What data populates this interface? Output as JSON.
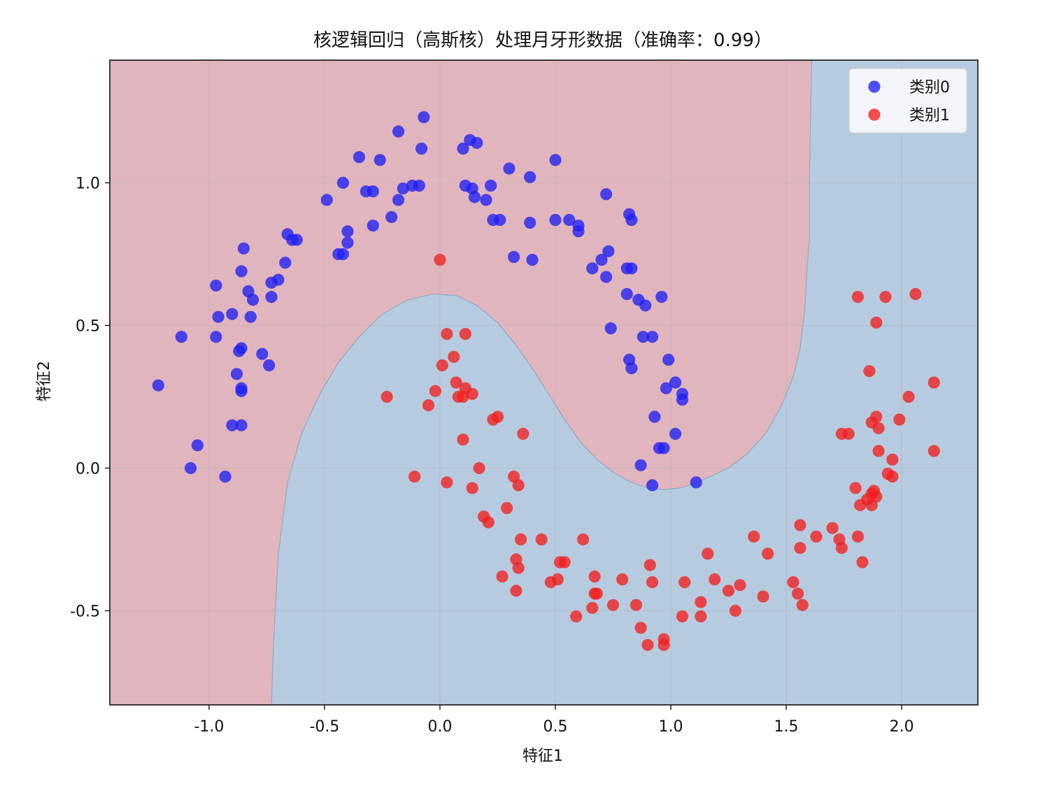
{
  "chart_data": {
    "type": "scatter",
    "title": "核逻辑回归（高斯核）处理月牙形数据（准确率：0.99）",
    "xlabel": "特征1",
    "ylabel": "特征2",
    "xlim": [
      -1.43,
      2.33
    ],
    "ylim": [
      -0.83,
      1.43
    ],
    "xticks": [
      -1.0,
      -0.5,
      0.0,
      0.5,
      1.0,
      1.5,
      2.0
    ],
    "xtick_labels": [
      "-1.0",
      "-0.5",
      "0.0",
      "0.5",
      "1.0",
      "1.5",
      "2.0"
    ],
    "yticks": [
      -0.5,
      0.0,
      0.5,
      1.0
    ],
    "ytick_labels": [
      "-0.5",
      "0.0",
      "0.5",
      "1.0"
    ],
    "grid": true,
    "legend_position": "top-right",
    "background_regions": [
      {
        "label": "class 0 region",
        "color": "#e1b5bd"
      },
      {
        "label": "class 1 region",
        "color": "#b7cbe0"
      }
    ],
    "decision_boundary": [
      [
        -0.73,
        -0.83
      ],
      [
        -0.72,
        -0.6
      ],
      [
        -0.7,
        -0.3
      ],
      [
        -0.66,
        -0.05
      ],
      [
        -0.6,
        0.12
      ],
      [
        -0.52,
        0.26
      ],
      [
        -0.44,
        0.37
      ],
      [
        -0.35,
        0.46
      ],
      [
        -0.25,
        0.54
      ],
      [
        -0.14,
        0.59
      ],
      [
        -0.03,
        0.61
      ],
      [
        0.07,
        0.605
      ],
      [
        0.16,
        0.57
      ],
      [
        0.25,
        0.51
      ],
      [
        0.32,
        0.44
      ],
      [
        0.4,
        0.35
      ],
      [
        0.47,
        0.26
      ],
      [
        0.54,
        0.17
      ],
      [
        0.61,
        0.09
      ],
      [
        0.68,
        0.03
      ],
      [
        0.76,
        -0.02
      ],
      [
        0.83,
        -0.05
      ],
      [
        0.9,
        -0.07
      ],
      [
        0.97,
        -0.075
      ],
      [
        1.04,
        -0.07
      ],
      [
        1.1,
        -0.055
      ],
      [
        1.17,
        -0.03
      ],
      [
        1.25,
        0.0
      ],
      [
        1.33,
        0.05
      ],
      [
        1.41,
        0.12
      ],
      [
        1.48,
        0.22
      ],
      [
        1.53,
        0.32
      ],
      [
        1.56,
        0.42
      ],
      [
        1.58,
        0.55
      ],
      [
        1.59,
        0.7
      ],
      [
        1.6,
        0.8
      ],
      [
        1.6,
        1.0
      ],
      [
        1.61,
        1.43
      ]
    ],
    "series": [
      {
        "name": "类别0",
        "color": "#1f1ff2",
        "points": [
          [
            -1.22,
            0.29
          ],
          [
            -1.12,
            0.46
          ],
          [
            -1.08,
            0.0
          ],
          [
            -1.05,
            0.08
          ],
          [
            -0.97,
            0.64
          ],
          [
            -0.93,
            -0.03
          ],
          [
            -0.97,
            0.46
          ],
          [
            -0.96,
            0.53
          ],
          [
            -0.9,
            0.15
          ],
          [
            -0.9,
            0.54
          ],
          [
            -0.88,
            0.33
          ],
          [
            -0.87,
            0.41
          ],
          [
            -0.86,
            0.42
          ],
          [
            -0.86,
            0.28
          ],
          [
            -0.86,
            0.27
          ],
          [
            -0.86,
            0.15
          ],
          [
            -0.86,
            0.69
          ],
          [
            -0.85,
            0.77
          ],
          [
            -0.83,
            0.62
          ],
          [
            -0.82,
            0.53
          ],
          [
            -0.81,
            0.59
          ],
          [
            -0.77,
            0.4
          ],
          [
            -0.74,
            0.36
          ],
          [
            -0.73,
            0.6
          ],
          [
            -0.73,
            0.65
          ],
          [
            -0.7,
            0.66
          ],
          [
            -0.67,
            0.72
          ],
          [
            -0.66,
            0.82
          ],
          [
            -0.64,
            0.8
          ],
          [
            -0.62,
            0.8
          ],
          [
            -0.49,
            0.94
          ],
          [
            -0.44,
            0.75
          ],
          [
            -0.42,
            0.75
          ],
          [
            -0.42,
            1.0
          ],
          [
            -0.4,
            0.79
          ],
          [
            -0.4,
            0.83
          ],
          [
            -0.35,
            1.09
          ],
          [
            -0.32,
            0.97
          ],
          [
            -0.29,
            0.97
          ],
          [
            -0.29,
            0.85
          ],
          [
            -0.26,
            1.08
          ],
          [
            -0.21,
            0.88
          ],
          [
            -0.18,
            0.94
          ],
          [
            -0.18,
            1.18
          ],
          [
            -0.16,
            0.98
          ],
          [
            -0.12,
            0.99
          ],
          [
            -0.09,
            0.99
          ],
          [
            -0.08,
            1.12
          ],
          [
            -0.07,
            1.23
          ],
          [
            0.1,
            1.12
          ],
          [
            0.11,
            0.99
          ],
          [
            0.13,
            1.15
          ],
          [
            0.14,
            0.98
          ],
          [
            0.15,
            0.95
          ],
          [
            0.16,
            1.14
          ],
          [
            0.2,
            0.94
          ],
          [
            0.22,
            0.99
          ],
          [
            0.23,
            0.87
          ],
          [
            0.26,
            0.87
          ],
          [
            0.3,
            1.05
          ],
          [
            0.32,
            0.74
          ],
          [
            0.39,
            0.86
          ],
          [
            0.39,
            1.02
          ],
          [
            0.4,
            0.73
          ],
          [
            0.5,
            1.08
          ],
          [
            0.5,
            0.87
          ],
          [
            0.56,
            0.87
          ],
          [
            0.6,
            0.83
          ],
          [
            0.6,
            0.85
          ],
          [
            0.66,
            0.7
          ],
          [
            0.7,
            0.73
          ],
          [
            0.72,
            0.67
          ],
          [
            0.72,
            0.96
          ],
          [
            0.73,
            0.76
          ],
          [
            0.74,
            0.49
          ],
          [
            0.81,
            0.7
          ],
          [
            0.81,
            0.61
          ],
          [
            0.82,
            0.38
          ],
          [
            0.82,
            0.89
          ],
          [
            0.83,
            0.35
          ],
          [
            0.83,
            0.87
          ],
          [
            0.83,
            0.7
          ],
          [
            0.86,
            0.59
          ],
          [
            0.87,
            0.01
          ],
          [
            0.88,
            0.46
          ],
          [
            0.89,
            0.57
          ],
          [
            0.92,
            0.46
          ],
          [
            0.92,
            -0.06
          ],
          [
            0.93,
            0.18
          ],
          [
            0.95,
            0.07
          ],
          [
            0.96,
            0.6
          ],
          [
            0.97,
            0.07
          ],
          [
            0.98,
            0.28
          ],
          [
            0.99,
            0.38
          ],
          [
            1.02,
            0.12
          ],
          [
            1.02,
            0.3
          ],
          [
            1.05,
            0.26
          ],
          [
            1.05,
            0.24
          ],
          [
            1.11,
            -0.05
          ]
        ]
      },
      {
        "name": "类别1",
        "color": "#f21f1f",
        "points": [
          [
            0.0,
            0.73
          ],
          [
            -0.23,
            0.25
          ],
          [
            -0.11,
            -0.03
          ],
          [
            -0.05,
            0.22
          ],
          [
            -0.02,
            0.27
          ],
          [
            0.01,
            0.36
          ],
          [
            0.03,
            0.47
          ],
          [
            0.03,
            -0.05
          ],
          [
            0.06,
            0.39
          ],
          [
            0.07,
            0.3
          ],
          [
            0.08,
            0.25
          ],
          [
            0.1,
            0.1
          ],
          [
            0.1,
            0.25
          ],
          [
            0.11,
            0.47
          ],
          [
            0.11,
            0.28
          ],
          [
            0.14,
            0.26
          ],
          [
            0.14,
            -0.07
          ],
          [
            0.17,
            0.0
          ],
          [
            0.19,
            -0.17
          ],
          [
            0.21,
            -0.19
          ],
          [
            0.23,
            0.17
          ],
          [
            0.25,
            0.18
          ],
          [
            0.27,
            -0.38
          ],
          [
            0.29,
            -0.14
          ],
          [
            0.32,
            -0.03
          ],
          [
            0.33,
            -0.43
          ],
          [
            0.33,
            -0.32
          ],
          [
            0.34,
            -0.06
          ],
          [
            0.34,
            -0.35
          ],
          [
            0.35,
            -0.25
          ],
          [
            0.36,
            0.12
          ],
          [
            0.44,
            -0.25
          ],
          [
            0.48,
            -0.4
          ],
          [
            0.51,
            -0.39
          ],
          [
            0.52,
            -0.33
          ],
          [
            0.54,
            -0.33
          ],
          [
            0.59,
            -0.52
          ],
          [
            0.62,
            -0.25
          ],
          [
            0.66,
            -0.49
          ],
          [
            0.67,
            -0.38
          ],
          [
            0.67,
            -0.44
          ],
          [
            0.68,
            -0.44
          ],
          [
            0.75,
            -0.48
          ],
          [
            0.79,
            -0.39
          ],
          [
            0.85,
            -0.48
          ],
          [
            0.87,
            -0.56
          ],
          [
            0.9,
            -0.62
          ],
          [
            0.91,
            -0.34
          ],
          [
            0.92,
            -0.4
          ],
          [
            0.97,
            -0.6
          ],
          [
            0.97,
            -0.62
          ],
          [
            1.05,
            -0.52
          ],
          [
            1.06,
            -0.4
          ],
          [
            1.13,
            -0.47
          ],
          [
            1.13,
            -0.52
          ],
          [
            1.16,
            -0.3
          ],
          [
            1.19,
            -0.39
          ],
          [
            1.25,
            -0.43
          ],
          [
            1.28,
            -0.5
          ],
          [
            1.3,
            -0.41
          ],
          [
            1.36,
            -0.24
          ],
          [
            1.4,
            -0.45
          ],
          [
            1.42,
            -0.3
          ],
          [
            1.53,
            -0.4
          ],
          [
            1.55,
            -0.44
          ],
          [
            1.56,
            -0.2
          ],
          [
            1.56,
            -0.28
          ],
          [
            1.57,
            -0.48
          ],
          [
            1.63,
            -0.24
          ],
          [
            1.7,
            -0.21
          ],
          [
            1.73,
            -0.25
          ],
          [
            1.74,
            -0.28
          ],
          [
            1.74,
            0.12
          ],
          [
            1.77,
            0.12
          ],
          [
            1.8,
            -0.07
          ],
          [
            1.81,
            0.6
          ],
          [
            1.81,
            -0.24
          ],
          [
            1.82,
            -0.13
          ],
          [
            1.83,
            -0.33
          ],
          [
            1.85,
            -0.11
          ],
          [
            1.86,
            0.34
          ],
          [
            1.87,
            -0.09
          ],
          [
            1.87,
            0.16
          ],
          [
            1.87,
            -0.13
          ],
          [
            1.88,
            -0.08
          ],
          [
            1.89,
            0.18
          ],
          [
            1.89,
            0.51
          ],
          [
            1.89,
            -0.1
          ],
          [
            1.9,
            0.06
          ],
          [
            1.9,
            0.14
          ],
          [
            1.93,
            0.6
          ],
          [
            1.94,
            -0.02
          ],
          [
            1.96,
            0.03
          ],
          [
            1.96,
            -0.03
          ],
          [
            1.99,
            0.17
          ],
          [
            2.03,
            0.25
          ],
          [
            2.06,
            0.61
          ],
          [
            2.14,
            0.06
          ],
          [
            2.14,
            0.3
          ]
        ]
      }
    ]
  }
}
